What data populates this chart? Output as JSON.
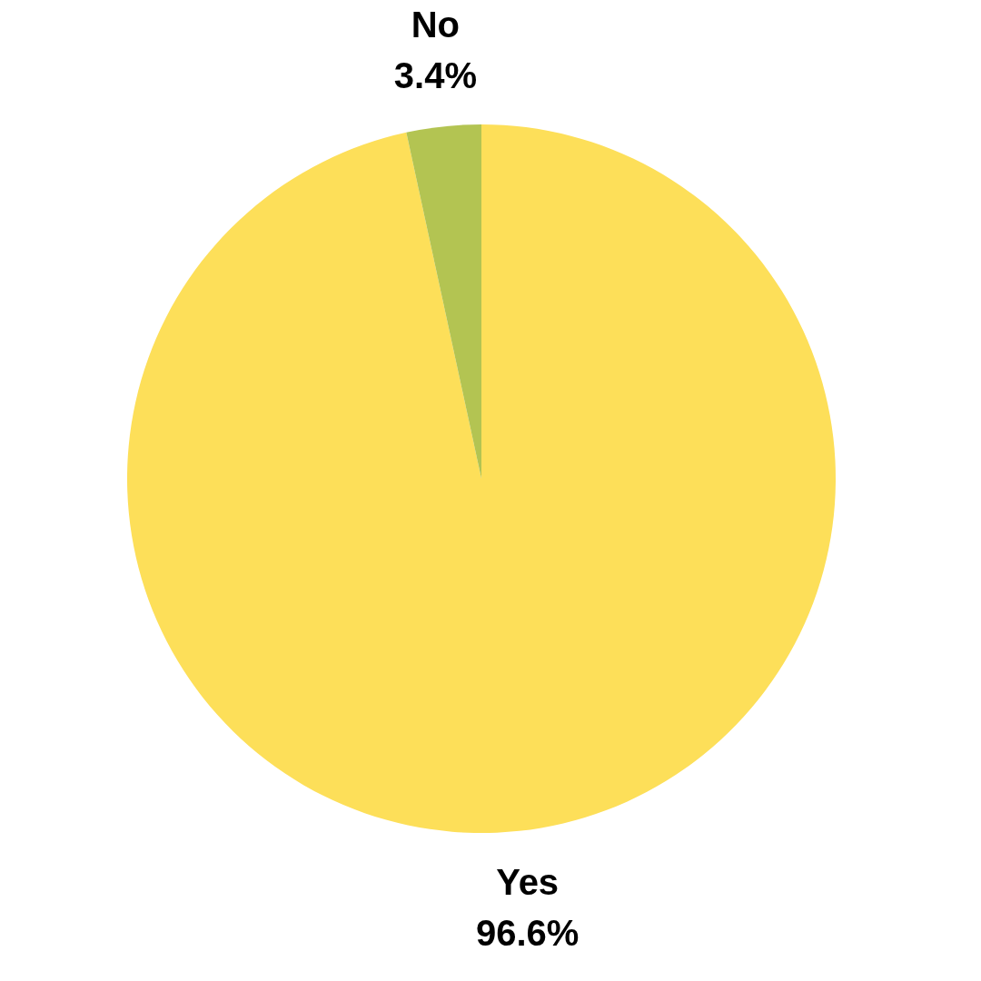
{
  "chart_data": {
    "type": "pie",
    "categories": [
      "Yes",
      "No"
    ],
    "values": [
      96.6,
      3.4
    ],
    "colors": [
      "#fddf59",
      "#b3c452"
    ],
    "value_labels": [
      "96.6%",
      "3.4%"
    ]
  }
}
